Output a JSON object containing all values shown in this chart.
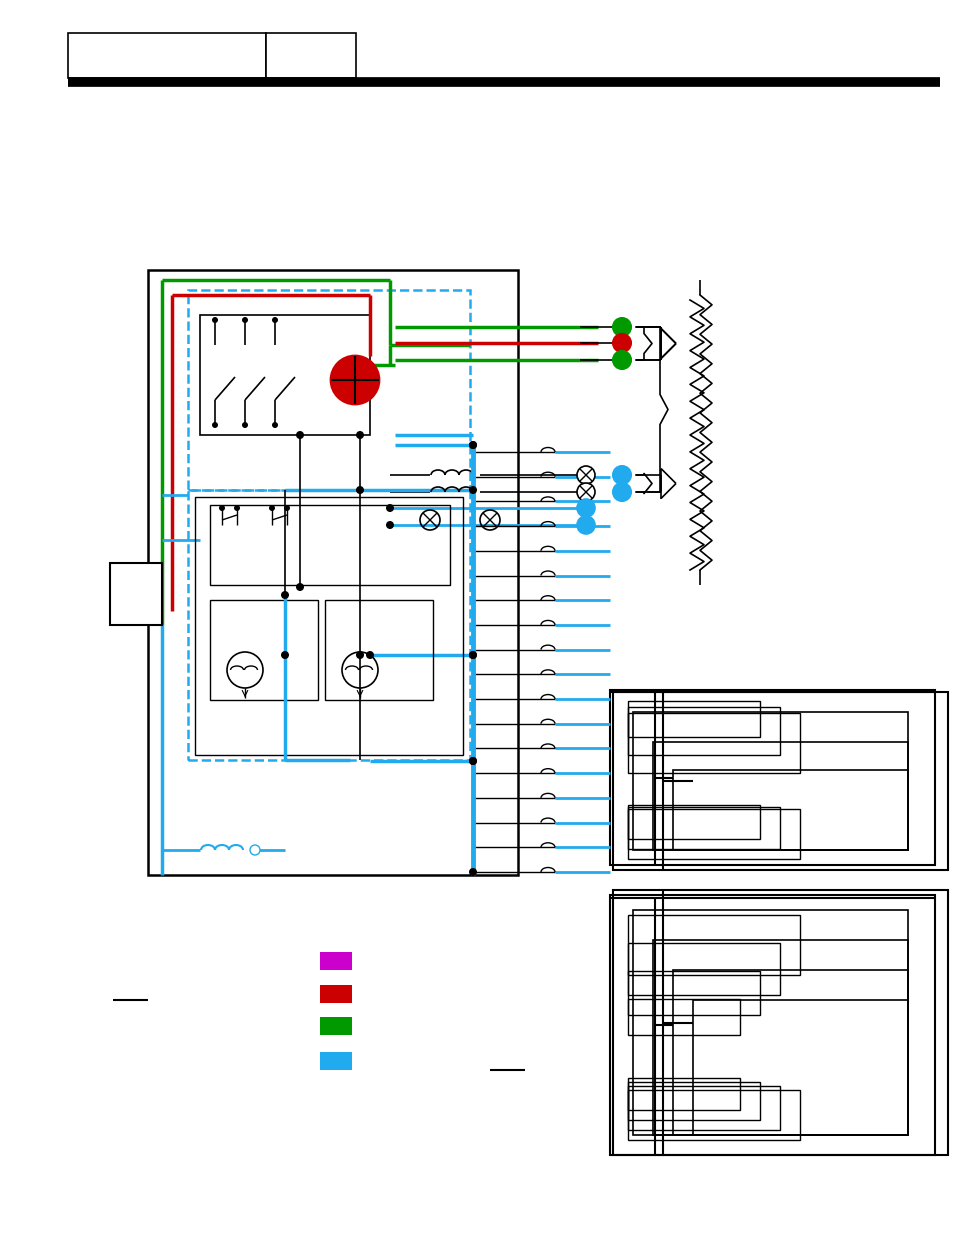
{
  "bg_color": "#ffffff",
  "GREEN": "#009900",
  "RED": "#cc0000",
  "BLUE": "#22aaee",
  "PURPLE": "#cc00cc",
  "BLACK": "#000000"
}
